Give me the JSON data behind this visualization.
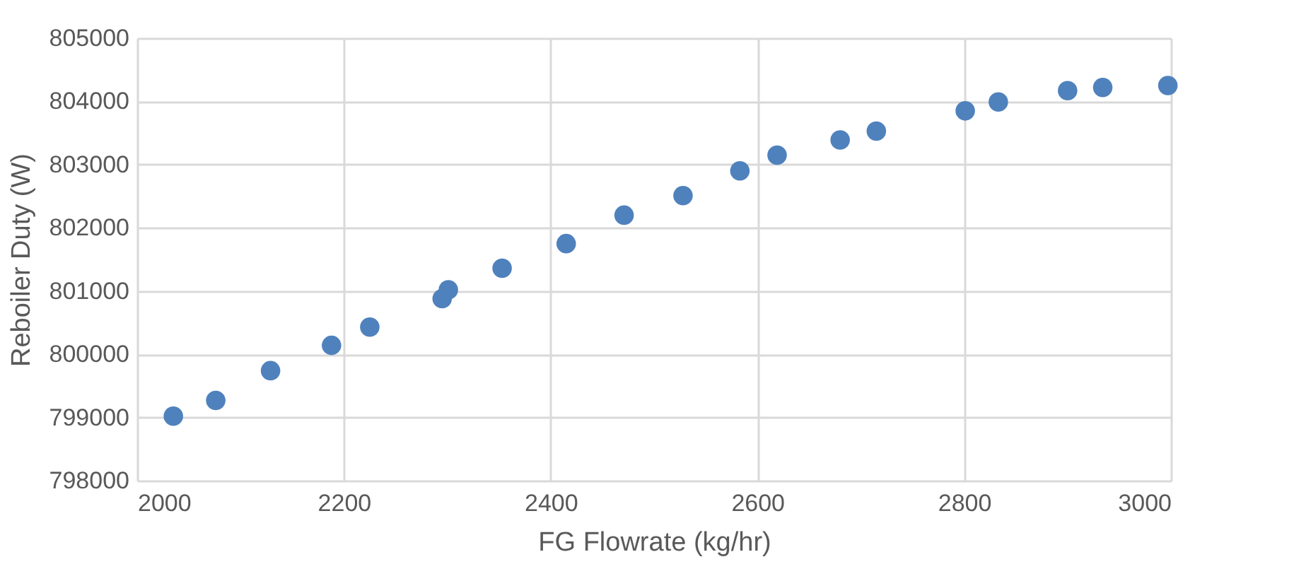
{
  "chart_data": {
    "type": "scatter",
    "xlabel": "FG Flowrate (kg/hr)",
    "ylabel": "Reboiler Duty (W)",
    "x": [
      2035,
      2076,
      2129,
      2188,
      2225,
      2295,
      2301,
      2353,
      2415,
      2471,
      2528,
      2583,
      2619,
      2680,
      2715,
      2801,
      2833,
      2900,
      2934,
      2997
    ],
    "series": [
      {
        "color": "#4f81bd",
        "values": [
          799020,
          799270,
          799740,
          800140,
          800430,
          800880,
          801020,
          801360,
          801750,
          802200,
          802510,
          802900,
          803150,
          803390,
          803530,
          803850,
          803990,
          804170,
          804220,
          804250
        ]
      }
    ],
    "xlim": [
      2000,
      3000
    ],
    "xticks": [
      2000,
      2200,
      2400,
      2600,
      2800,
      3000
    ],
    "ylim": [
      798000,
      805000
    ],
    "yticks": [
      798000,
      799000,
      800000,
      801000,
      802000,
      803000,
      804000,
      805000
    ],
    "grid": true,
    "marker": "circle"
  }
}
